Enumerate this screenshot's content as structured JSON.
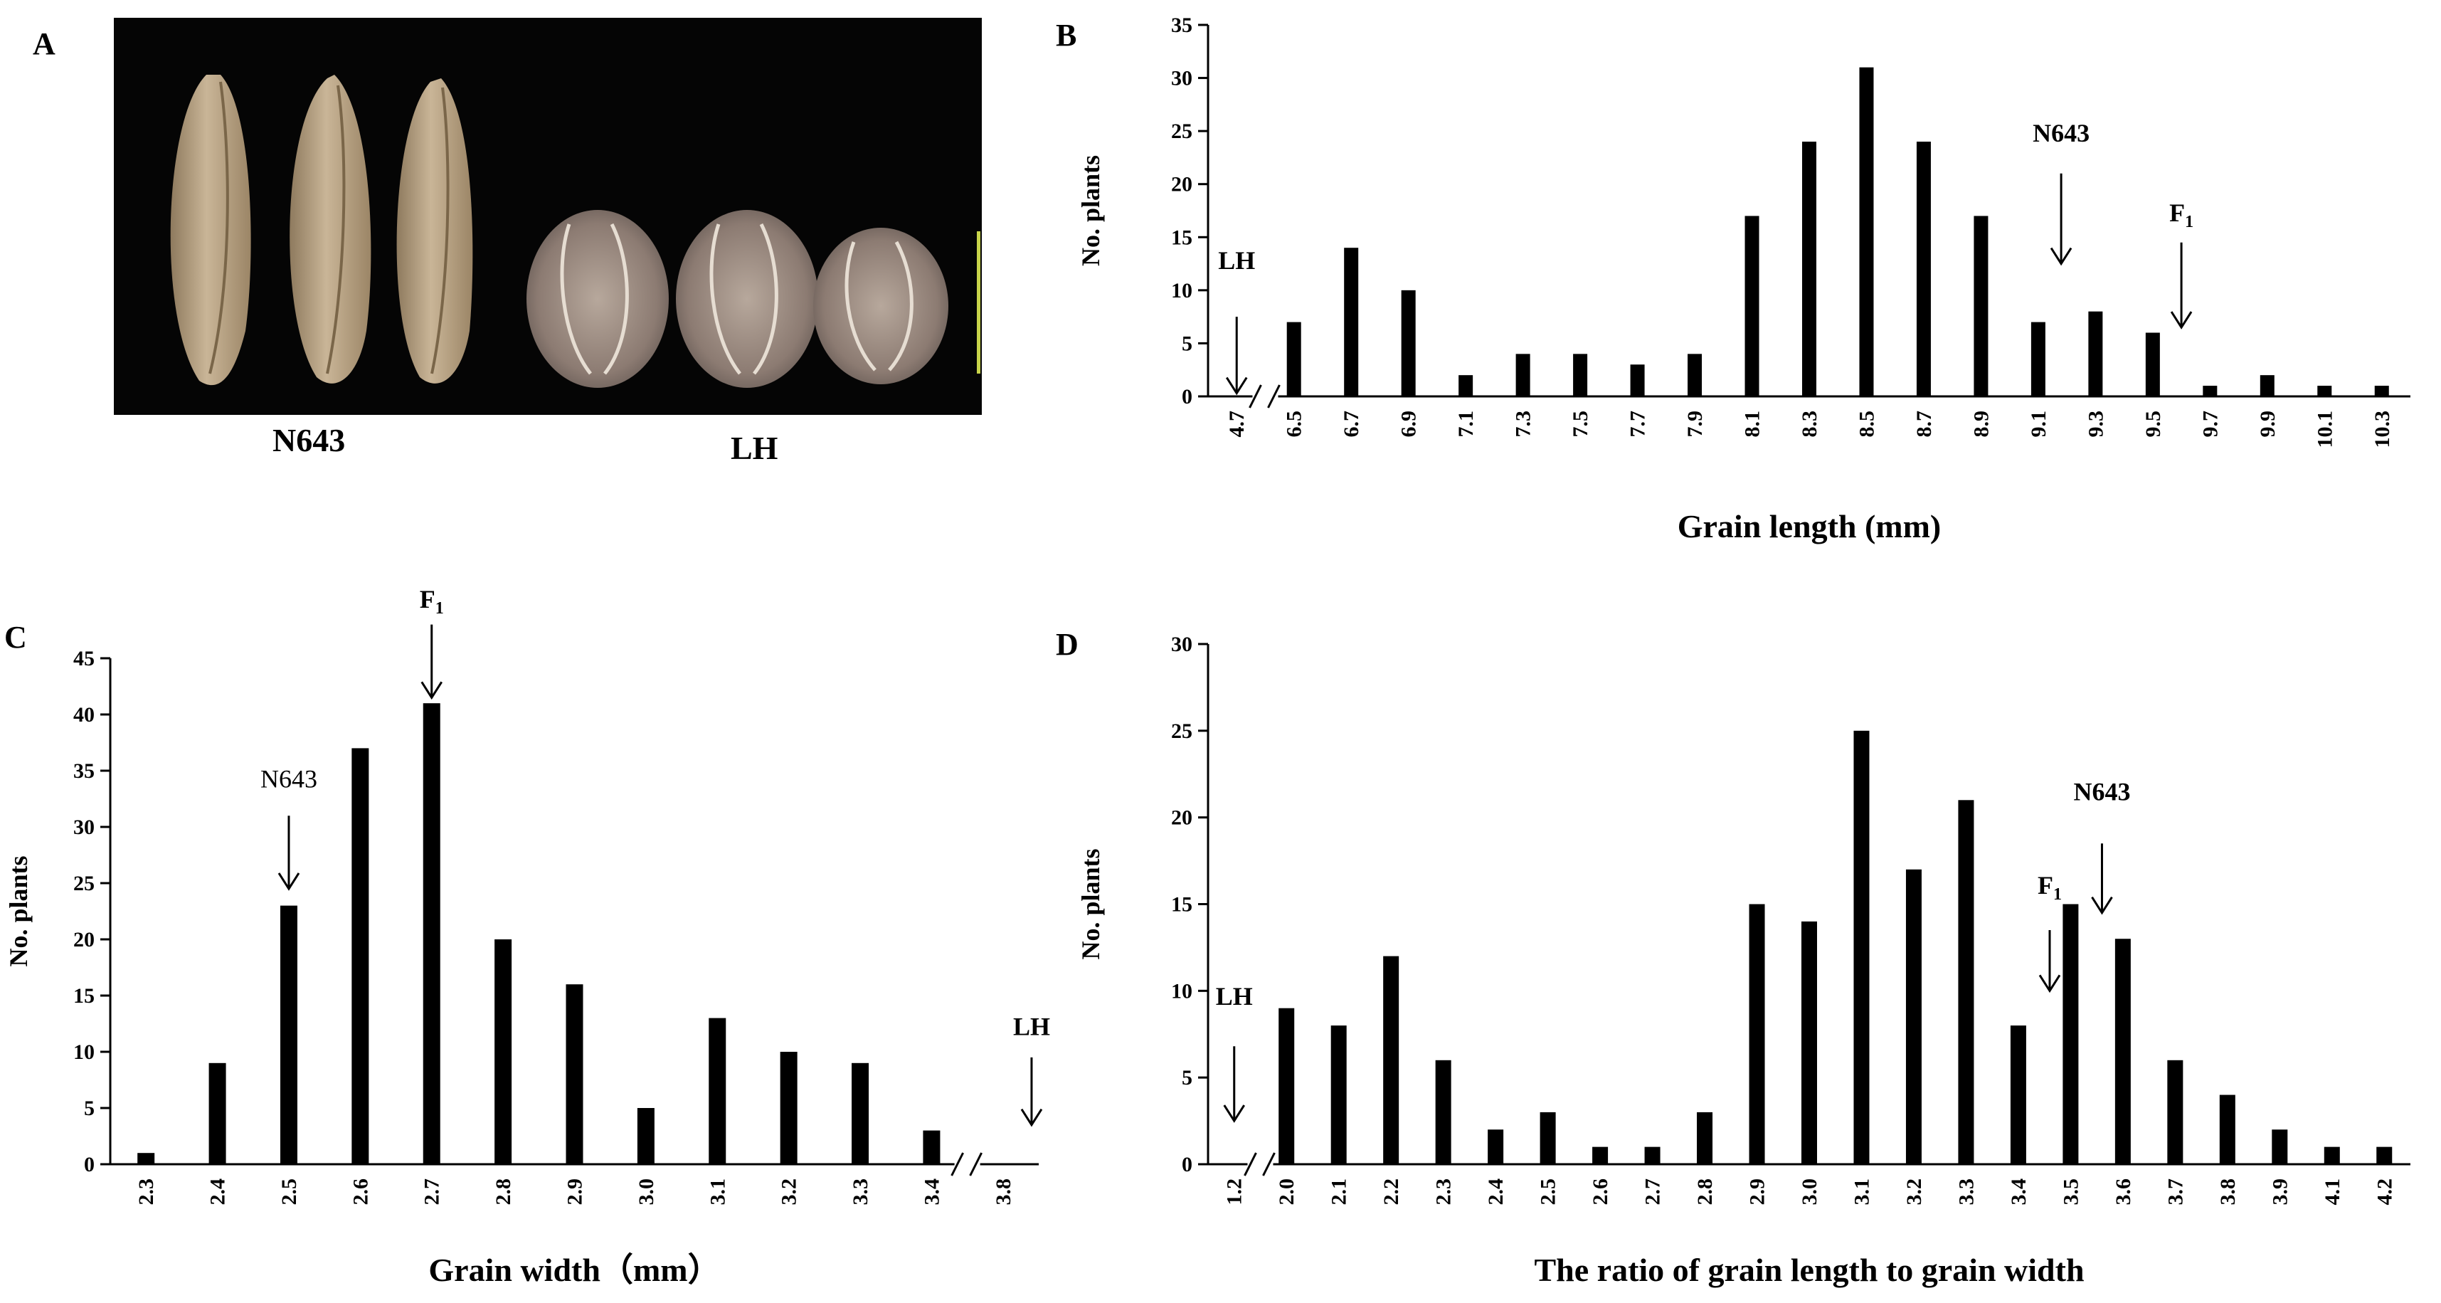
{
  "panel_a": {
    "label": "A",
    "captions": [
      "N643",
      "LH"
    ]
  },
  "chart_data": [
    {
      "panel": "B",
      "type": "bar",
      "xlabel": "Grain length (mm)",
      "ylabel": "No. plants",
      "ylim": [
        0,
        35
      ],
      "yticks": [
        0,
        5,
        10,
        15,
        20,
        25,
        30,
        35
      ],
      "categories": [
        "4.7",
        "6.5",
        "6.7",
        "6.9",
        "7.1",
        "7.3",
        "7.5",
        "7.7",
        "7.9",
        "8.1",
        "8.3",
        "8.5",
        "8.7",
        "8.9",
        "9.1",
        "9.3",
        "9.5",
        "9.7",
        "9.9",
        "10.1",
        "10.3"
      ],
      "values": [
        0,
        7,
        14,
        10,
        2,
        4,
        4,
        3,
        4,
        17,
        24,
        31,
        24,
        17,
        7,
        8,
        6,
        1,
        2,
        1,
        1
      ],
      "axis_break_after_index": 0,
      "annotations": [
        {
          "text": "LH",
          "sub": "",
          "x_index": 0,
          "text_value": 12,
          "arrow_from": 7.5,
          "arrow_to": 0.3
        },
        {
          "text": "N643",
          "sub": "",
          "x_index": 14.4,
          "text_value": 24,
          "arrow_from": 21,
          "arrow_to": 12.5
        },
        {
          "text": "F",
          "sub": "1",
          "x_index": 16.5,
          "text_value": 16.5,
          "arrow_from": 14.5,
          "arrow_to": 6.5
        }
      ]
    },
    {
      "panel": "C",
      "type": "bar",
      "xlabel": "Grain width（mm）",
      "ylabel": "No. plants",
      "ylim": [
        0,
        45
      ],
      "yticks": [
        0,
        5,
        10,
        15,
        20,
        25,
        30,
        35,
        40,
        45
      ],
      "categories": [
        "2.3",
        "2.4",
        "2.5",
        "2.6",
        "2.7",
        "2.8",
        "2.9",
        "3.0",
        "3.1",
        "3.2",
        "3.3",
        "3.4",
        "3.8"
      ],
      "values": [
        1,
        9,
        23,
        37,
        41,
        20,
        16,
        5,
        13,
        10,
        9,
        3,
        0
      ],
      "axis_break_after_index": 11,
      "annotations": [
        {
          "text": "N643",
          "sub": "",
          "x_index": 2,
          "text_value": 33.5,
          "arrow_from": 31,
          "arrow_to": 24.5
        },
        {
          "text": "F",
          "sub": "1",
          "x_index": 4,
          "text_value": 49.5,
          "arrow_from": 48,
          "arrow_to": 41.5
        },
        {
          "text": "LH",
          "sub": "",
          "x_index": 12.4,
          "text_value": 11.5,
          "arrow_from": 9.5,
          "arrow_to": 3.5
        }
      ]
    },
    {
      "panel": "D",
      "type": "bar",
      "xlabel": "The ratio of grain length to grain width",
      "ylabel": "No. plants",
      "ylim": [
        0,
        30
      ],
      "yticks": [
        0,
        5,
        10,
        15,
        20,
        25,
        30
      ],
      "categories": [
        "1.2",
        "2.0",
        "2.1",
        "2.2",
        "2.3",
        "2.4",
        "2.5",
        "2.6",
        "2.7",
        "2.8",
        "2.9",
        "3.0",
        "3.1",
        "3.2",
        "3.3",
        "3.4",
        "3.5",
        "3.6",
        "3.7",
        "3.8",
        "3.9",
        "4.1",
        "4.2"
      ],
      "values": [
        0,
        9,
        8,
        12,
        6,
        2,
        3,
        1,
        1,
        3,
        15,
        14,
        25,
        17,
        21,
        8,
        15,
        13,
        6,
        4,
        2,
        1,
        1
      ],
      "axis_break_after_index": 0,
      "annotations": [
        {
          "text": "LH",
          "sub": "",
          "x_index": 0,
          "text_value": 9.2,
          "arrow_from": 6.8,
          "arrow_to": 2.5
        },
        {
          "text": "F",
          "sub": "1",
          "x_index": 15.6,
          "text_value": 15.6,
          "arrow_from": 13.5,
          "arrow_to": 10
        },
        {
          "text": "N643",
          "sub": "",
          "x_index": 16.6,
          "text_value": 21,
          "arrow_from": 18.5,
          "arrow_to": 14.5
        }
      ]
    }
  ]
}
